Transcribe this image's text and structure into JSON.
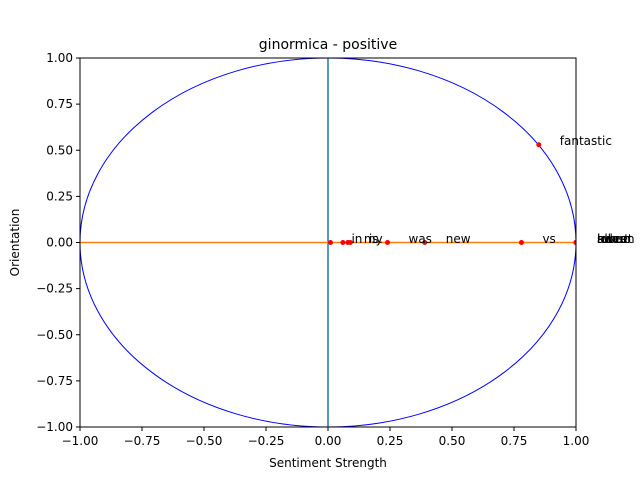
{
  "chart_data": {
    "type": "scatter",
    "title": "ginormica - positive",
    "xlabel": "Sentiment Strength",
    "ylabel": "Orientation",
    "xlim": [
      -1.0,
      1.0
    ],
    "ylim": [
      -1.0,
      1.0
    ],
    "xticks": [
      "−1.00",
      "−0.75",
      "−0.50",
      "−0.25",
      "0.00",
      "0.25",
      "0.50",
      "0.75",
      "1.00"
    ],
    "yticks": [
      "−1.00",
      "−0.75",
      "−0.50",
      "−0.25",
      "0.00",
      "0.25",
      "0.50",
      "0.75",
      "1.00"
    ],
    "xtick_values": [
      -1.0,
      -0.75,
      -0.5,
      -0.25,
      0.0,
      0.25,
      0.5,
      0.75,
      1.0
    ],
    "ytick_values": [
      -1.0,
      -0.75,
      -0.5,
      -0.25,
      0.0,
      0.25,
      0.5,
      0.75,
      1.0
    ],
    "grid": false,
    "colors": {
      "circle": "#0000ff",
      "vertical_line": "#1f77b4",
      "horizontal_line": "#ff7f0e",
      "points": "#ff0000",
      "background": "#ffffff",
      "axes": "#000000"
    },
    "circle": {
      "center": [
        0,
        0
      ],
      "radius": 1.0
    },
    "reference_lines": {
      "vertical_x": 0.0,
      "horizontal_y": 0.0
    },
    "points": [
      {
        "label": "fantastic",
        "x": 0.85,
        "y": 0.53
      },
      {
        "label": "in",
        "x": 0.01,
        "y": 0.0
      },
      {
        "label": "my",
        "x": 0.06,
        "y": 0.0
      },
      {
        "label": "is",
        "x": 0.08,
        "y": 0.0
      },
      {
        "label": "...",
        "x": 0.09,
        "y": 0.0
      },
      {
        "label": "was",
        "x": 0.24,
        "y": 0.0
      },
      {
        "label": "new",
        "x": 0.39,
        "y": 0.0
      },
      {
        "label": "vs",
        "x": 0.78,
        "y": 0.0
      },
      {
        "label": "album",
        "x": 1.0,
        "y": 0.0
      },
      {
        "label": "rules",
        "x": 1.0,
        "y": 0.0
      },
      {
        "label": "sweet",
        "x": 1.0,
        "y": 0.0
      },
      {
        "label": "love",
        "x": 1.0,
        "y": 0.0
      },
      {
        "label": "heart",
        "x": 1.0,
        "y": 0.0
      }
    ]
  }
}
